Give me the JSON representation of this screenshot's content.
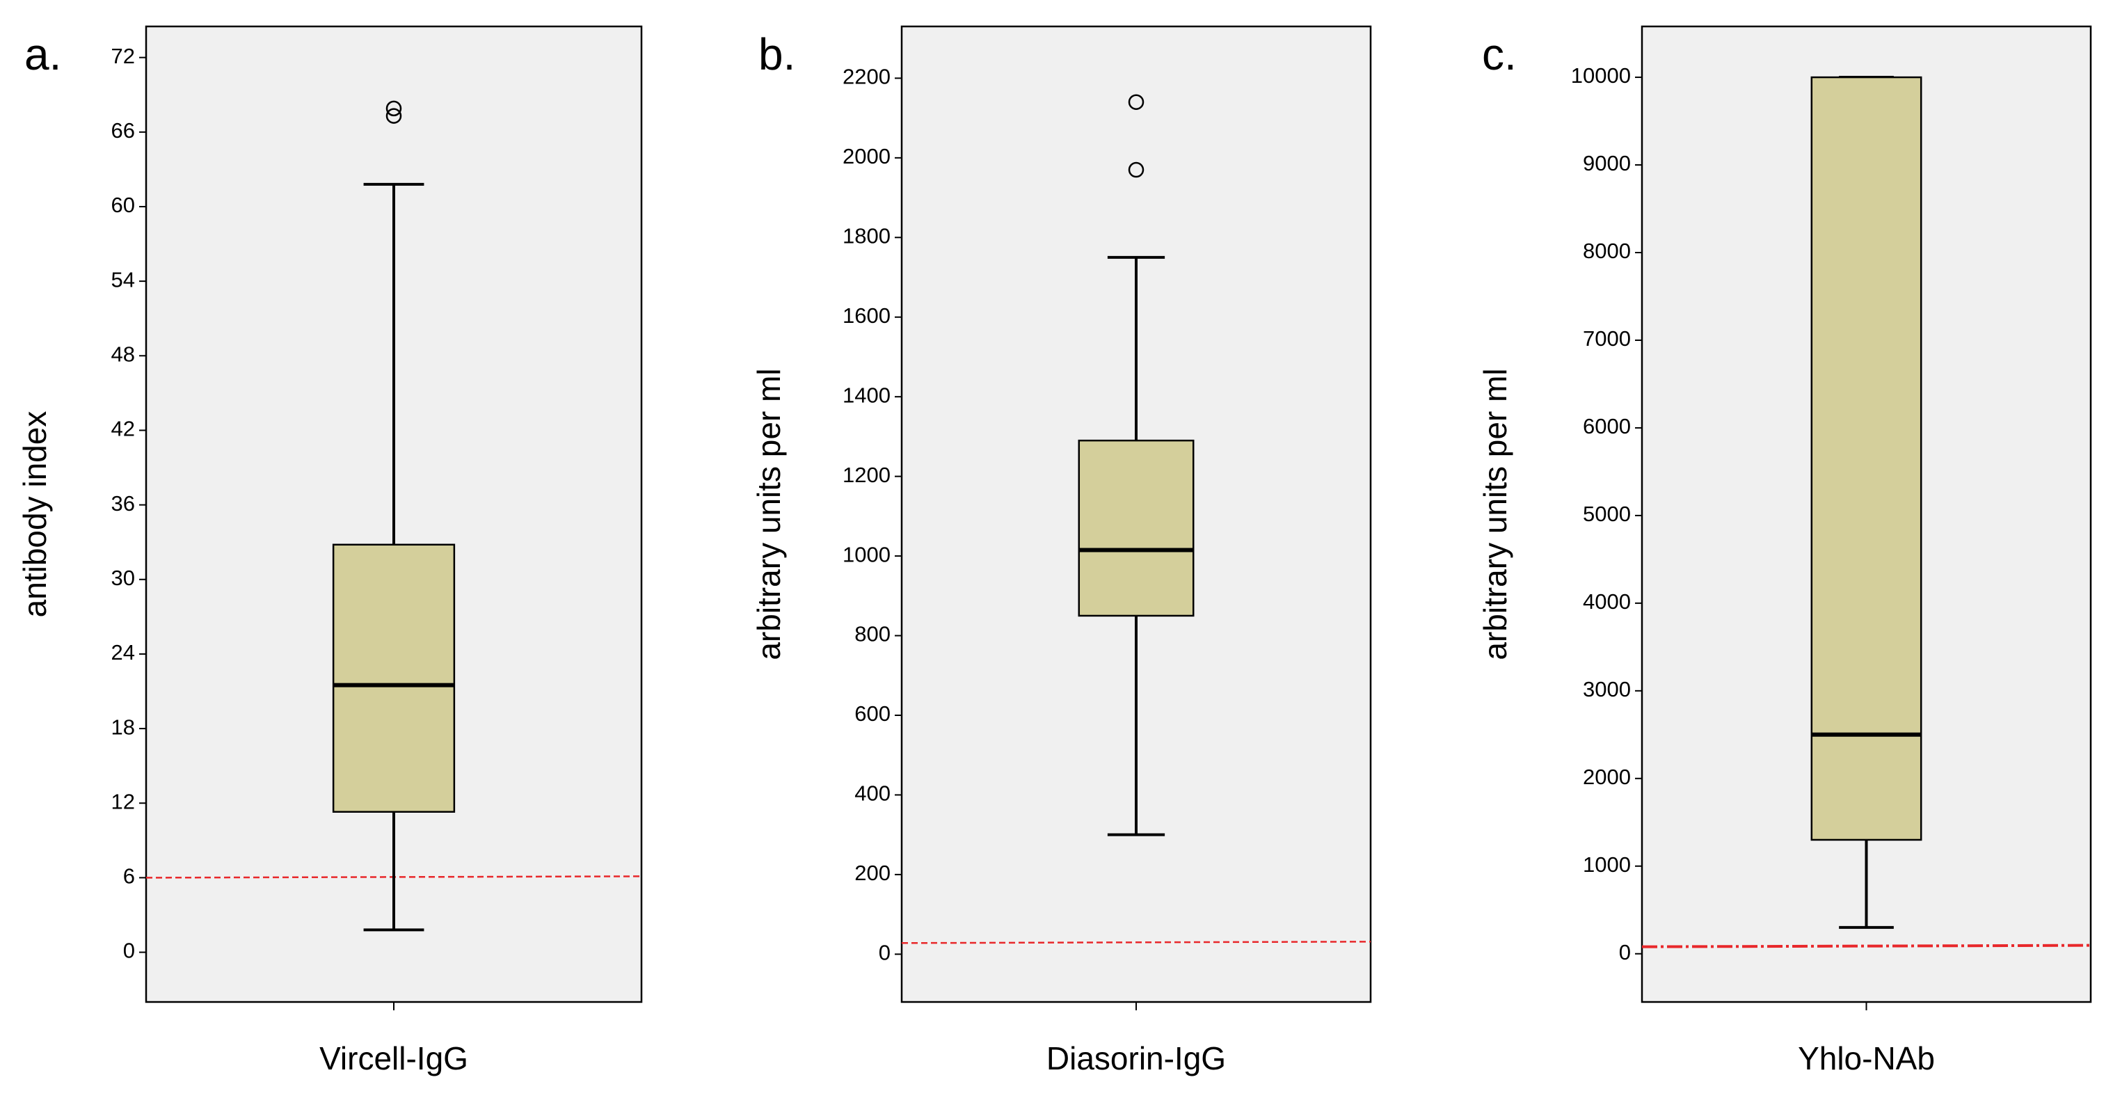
{
  "colors": {
    "box_fill": "#d4cf9b",
    "plot_bg": "#f0f0f0",
    "stroke": "#000000",
    "cutoff": "#e8282b"
  },
  "chart_data": [
    {
      "type": "box",
      "panel_label": "a.",
      "ylabel": "antibody index",
      "category": "Vircell-IgG",
      "yticks": [
        "0",
        "6",
        "12",
        "18",
        "24",
        "30",
        "36",
        "42",
        "48",
        "54",
        "60",
        "66",
        "72"
      ],
      "ylim": [
        -4,
        74.5
      ],
      "stats": {
        "whisker_low": 1.8,
        "q1": 11.3,
        "median": 21.5,
        "q3": 32.8,
        "whisker_high": 61.8
      },
      "outliers": [
        67.3,
        67.9
      ],
      "cutoff": {
        "value": 6,
        "style": "dashed"
      }
    },
    {
      "type": "box",
      "panel_label": "b.",
      "ylabel": "arbitrary units per ml",
      "category": "Diasorin-IgG",
      "yticks": [
        "0",
        "200",
        "400",
        "600",
        "800",
        "1000",
        "1200",
        "1400",
        "1600",
        "1800",
        "2000",
        "2200"
      ],
      "ylim": [
        -120,
        2330
      ],
      "stats": {
        "whisker_low": 300,
        "q1": 850,
        "median": 1015,
        "q3": 1290,
        "whisker_high": 1750
      },
      "outliers": [
        1970,
        2140
      ],
      "cutoff": {
        "value": 28,
        "style": "dashed"
      }
    },
    {
      "type": "box",
      "panel_label": "c.",
      "ylabel": "arbitrary units per ml",
      "category": "Yhlo-NAb",
      "yticks": [
        "0",
        "1000",
        "2000",
        "3000",
        "4000",
        "5000",
        "6000",
        "7000",
        "8000",
        "9000",
        "10000"
      ],
      "ylim": [
        -550,
        10580
      ],
      "stats": {
        "whisker_low": 300,
        "q1": 1300,
        "median": 2500,
        "q3": 10000,
        "whisker_high": 10000
      },
      "outliers": [],
      "cutoff": {
        "value": 80,
        "style": "dashdot"
      }
    }
  ]
}
